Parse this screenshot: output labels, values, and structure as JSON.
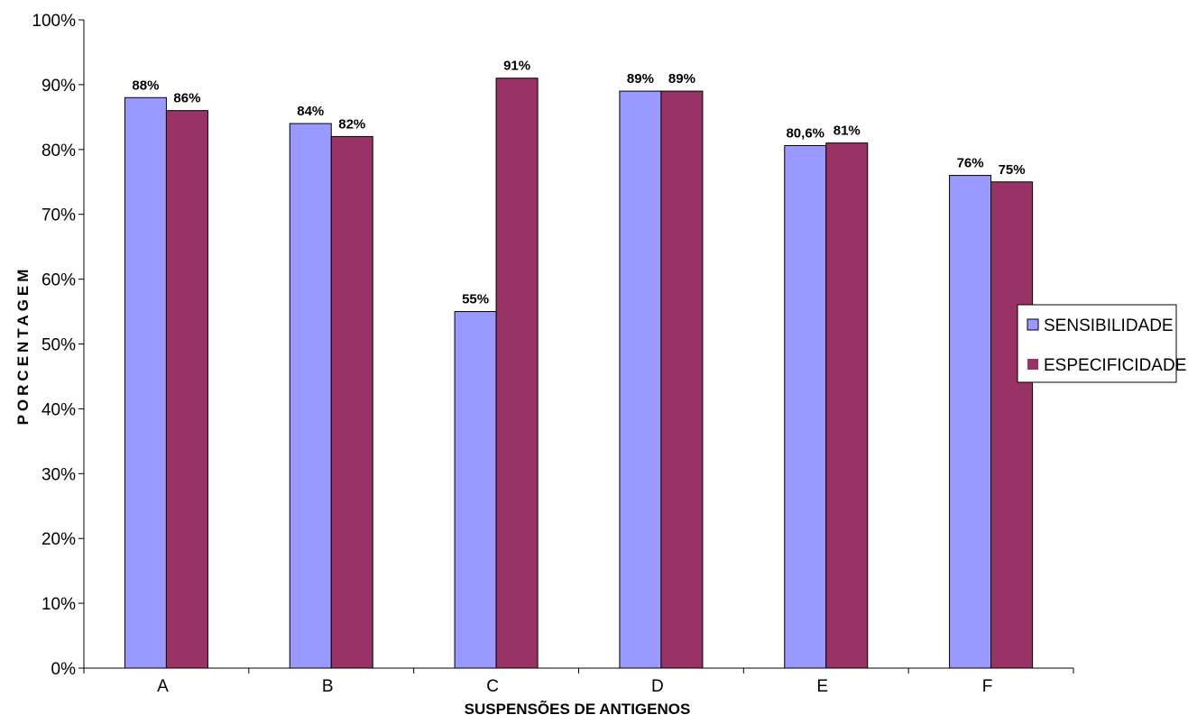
{
  "chart_data": {
    "type": "bar",
    "title": "",
    "xlabel": "SUSPENSÕES DE ANTIGENOS",
    "ylabel": "PORCENTAGEM",
    "ylim": [
      0,
      100
    ],
    "yticks": [
      "0%",
      "10%",
      "20%",
      "30%",
      "40%",
      "50%",
      "60%",
      "70%",
      "80%",
      "90%",
      "100%"
    ],
    "categories": [
      "A",
      "B",
      "C",
      "D",
      "E",
      "F"
    ],
    "series": [
      {
        "name": "SENSIBILIDADE",
        "color": "#9999ff",
        "values": [
          88,
          84,
          55,
          89,
          80.6,
          76
        ],
        "labels": [
          "88%",
          "84%",
          "55%",
          "89%",
          "80,6%",
          "76%"
        ]
      },
      {
        "name": "ESPECIFICIDADE",
        "color": "#993366",
        "values": [
          86,
          82,
          91,
          89,
          81,
          75
        ],
        "labels": [
          "86%",
          "82%",
          "91%",
          "89%",
          "81%",
          "75%"
        ]
      }
    ],
    "grid": false,
    "legend_position": "right"
  }
}
